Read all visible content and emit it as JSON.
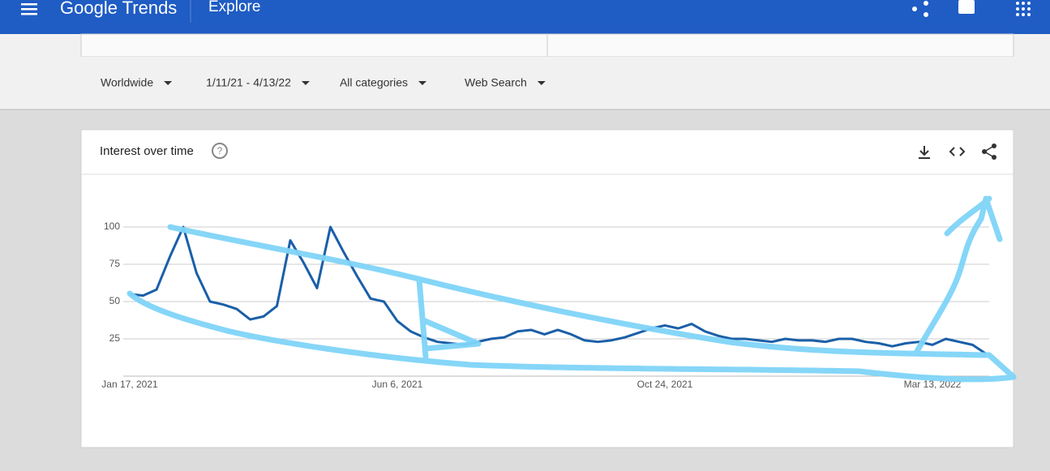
{
  "header": {
    "brand": "Google Trends",
    "page": "Explore"
  },
  "filters": [
    "Worldwide",
    "1/11/21 - 4/13/22",
    "All categories",
    "Web Search"
  ],
  "chart_data": {
    "type": "line",
    "title": "Interest over time",
    "categories": [
      "Jan 17, 2021",
      null,
      null,
      null,
      null,
      null,
      null,
      null,
      null,
      null,
      null,
      null,
      null,
      null,
      null,
      null,
      null,
      null,
      null,
      null,
      "Jun 6, 2021",
      null,
      null,
      null,
      null,
      null,
      null,
      null,
      null,
      null,
      null,
      null,
      null,
      null,
      null,
      null,
      null,
      null,
      null,
      null,
      "Oct 24, 2021",
      null,
      null,
      null,
      null,
      null,
      null,
      null,
      null,
      null,
      null,
      null,
      null,
      null,
      null,
      null,
      null,
      null,
      null,
      null,
      "Mar 13, 2022",
      null,
      null,
      null,
      null
    ],
    "values": [
      55,
      54,
      58,
      80,
      100,
      69,
      50,
      48,
      45,
      38,
      40,
      47,
      91,
      76,
      59,
      100,
      83,
      67,
      52,
      50,
      37,
      30,
      26,
      23,
      22,
      21,
      23,
      25,
      26,
      30,
      31,
      28,
      31,
      28,
      24,
      23,
      24,
      26,
      29,
      32,
      34,
      32,
      35,
      30,
      27,
      25,
      25,
      24,
      23,
      25,
      24,
      24,
      23,
      25,
      25,
      23,
      22,
      20,
      22,
      23,
      21,
      25,
      23,
      21,
      15
    ],
    "color": "#1a5fa8",
    "ylim": [
      0,
      100
    ],
    "yticks": [
      25,
      50,
      75,
      100
    ],
    "grid": true
  }
}
